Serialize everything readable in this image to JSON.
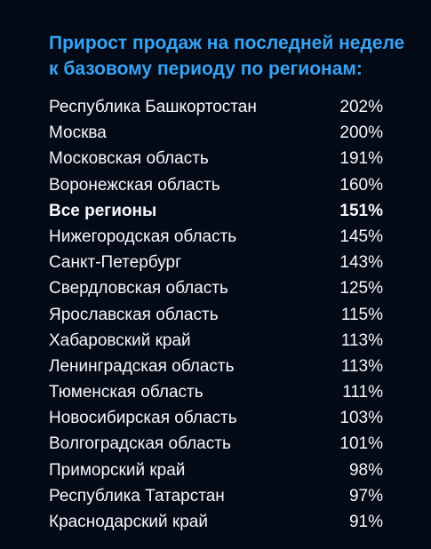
{
  "title": {
    "line1": "Прирост продаж на последней неделе",
    "line2": "к базовому периоду по регионам:"
  },
  "rows": [
    {
      "region": "Республика Башкортостан",
      "value": "202%"
    },
    {
      "region": "Москва",
      "value": "200%"
    },
    {
      "region": "Московская область",
      "value": "191%"
    },
    {
      "region": "Воронежская область",
      "value": "160%"
    },
    {
      "region": "Все регионы",
      "value": "151%",
      "bold": true
    },
    {
      "region": "Нижегородская область",
      "value": "145%"
    },
    {
      "region": "Санкт-Петербург",
      "value": "143%"
    },
    {
      "region": "Свердловская область",
      "value": "125%"
    },
    {
      "region": "Ярославская область",
      "value": "115%"
    },
    {
      "region": "Хабаровский край",
      "value": "113%"
    },
    {
      "region": "Ленинградская область",
      "value": "113%"
    },
    {
      "region": "Тюменская область",
      "value": "111%"
    },
    {
      "region": "Новосибирская область",
      "value": "103%"
    },
    {
      "region": "Волгоградская область",
      "value": "101%"
    },
    {
      "region": "Приморский край",
      "value": "98%"
    },
    {
      "region": "Республика Татарстан",
      "value": "97%"
    },
    {
      "region": "Краснодарский край",
      "value": "91%"
    }
  ],
  "colors": {
    "background": "#040b17",
    "title": "#39a2f2",
    "text": "#f5f7fa"
  }
}
